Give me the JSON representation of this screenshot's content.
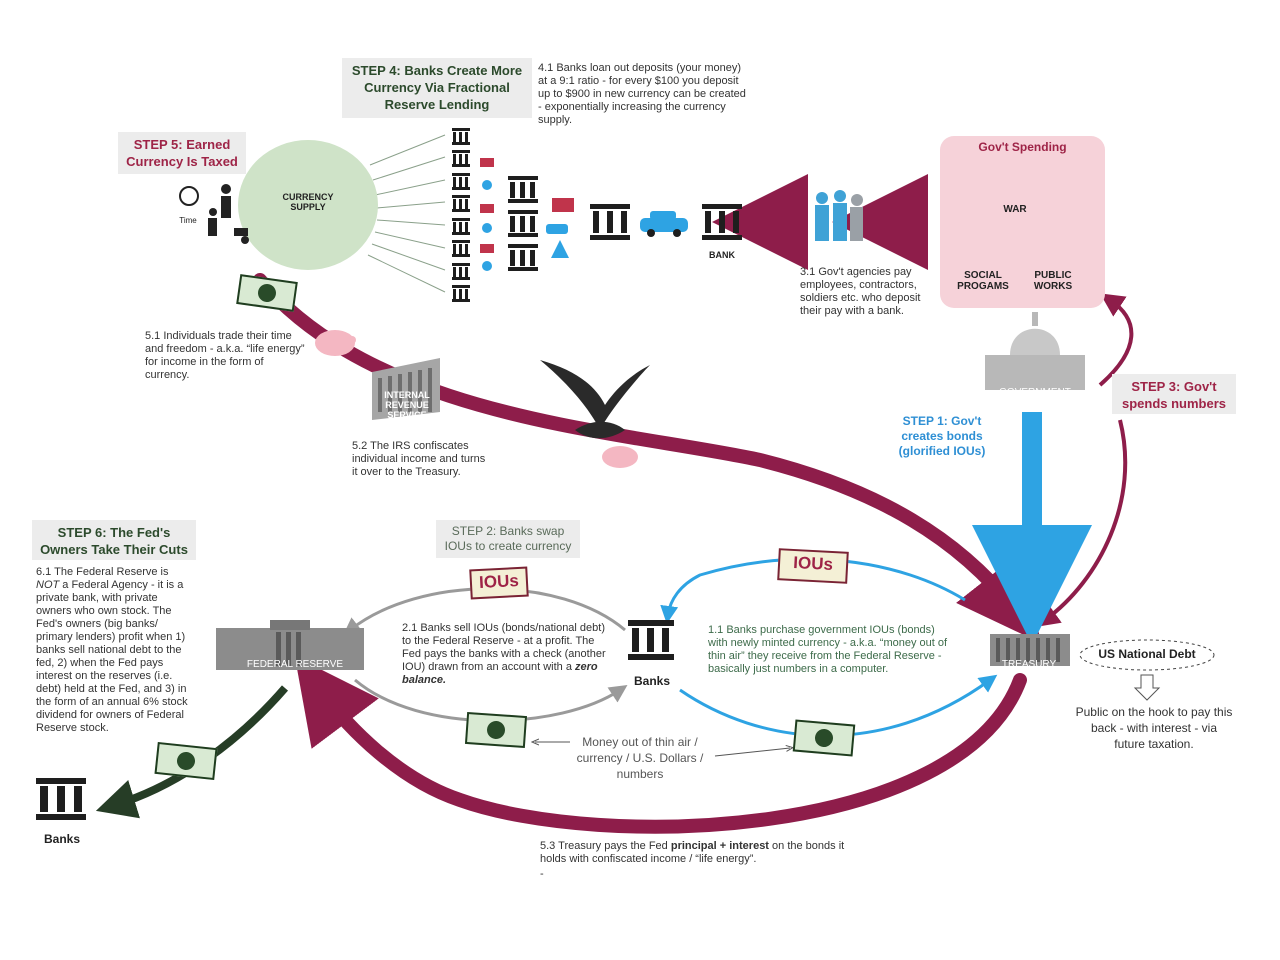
{
  "step4": {
    "title": "STEP 4: Banks Create More Currency Via Fractional Reserve Lending",
    "note": "4.1 Banks loan out deposits (your money) at a 9:1 ratio - for every $100 you deposit up to $900 in new currency can be created - exponentially increasing the currency supply."
  },
  "step5": {
    "title": "STEP 5: Earned Currency Is Taxed",
    "note1": "5.1 Individuals trade their time and freedom - a.k.a. “life energy” for income in the form of currency.",
    "note2": "5.2 The IRS confiscates individual income and turns it over to the Treasury.",
    "note3_prefix": "5.3 Treasury pays the Fed ",
    "note3_bold": "principal + interest",
    "note3_suffix": " on the bonds it holds with confiscated income / “life energy”.",
    "dash": "-"
  },
  "currency_supply": "CURRENCY SUPPLY",
  "time_label": "Time",
  "irs_label": "INTERNAL REVENUE SERVICE",
  "bank_label": "BANK",
  "govt_spending": {
    "title": "Gov't Spending",
    "war": "WAR",
    "social": "SOCIAL PROGAMS",
    "public": "PUBLIC WORKS"
  },
  "step3": {
    "title": "STEP 3: Gov't spends numbers",
    "note": "3.1  Gov't agencies pay employees, contractors, soldiers etc. who deposit their pay with a bank."
  },
  "government_label": "GOVERNMENT",
  "step1": {
    "title": "STEP 1: Gov't creates bonds (glorified IOUs)"
  },
  "step2": {
    "title": "STEP 2: Banks swap IOUs to create currency",
    "note_main": "2.1 Banks sell IOUs (bonds/national debt) to the Federal Reserve - at a profit. The Fed pays the banks with a check (another IOU) drawn from an account with a ",
    "note_em": "zero balance."
  },
  "step6": {
    "title": "STEP 6: The Fed's Owners Take Their Cuts",
    "note_a": "6.1 The Federal Reserve is ",
    "note_em": "NOT",
    "note_b": " a Federal Agency - it is a private bank, with private owners who own stock. The Fed's owners (big banks/ primary lenders) profit when 1) banks sell national debt to the fed, 2) when the Fed pays interest on the reserves (i.e. debt) held at the Fed, and 3) in the form of an annual 6% stock dividend for owners of Federal Reserve stock."
  },
  "note11": "1.1 Banks purchase government IOUs (bonds) with newly minted currency - a.k.a. “money out of thin air” they receive from the Federal Reserve - basically just numbers in a computer.",
  "iou_label": "IOUs",
  "banks_label": "Banks",
  "banks_left_label": "Banks",
  "federal_reserve_label": "FEDERAL RESERVE",
  "treasury_label": "TREASURY",
  "money_note": "Money out of thin air / currency / U.S. Dollars / numbers",
  "national_debt": "US National Debt",
  "public_note": "Public on the hook to pay this back - with interest - via future taxation.",
  "colors": {
    "maroon": "#8e1d4a",
    "blue": "#2ea3e3",
    "green_dark": "#263d26",
    "currency_fill": "#cfe3c8",
    "pink_box": "#f6d2d9"
  }
}
